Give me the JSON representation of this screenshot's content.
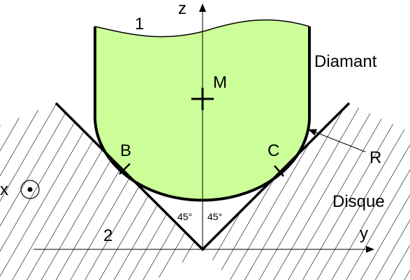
{
  "labels": {
    "axis_z": "z",
    "axis_y": "y",
    "axis_x": "x",
    "region_1": "1",
    "region_2": "2",
    "point_m": "M",
    "point_b": "B",
    "point_c": "C",
    "radius": "R",
    "diamond": "Diamant",
    "disc": "Disque",
    "angle_left": "45°",
    "angle_right": "45°"
  },
  "colors": {
    "diamond_fill": "#ccff99",
    "stroke": "#000000"
  }
}
